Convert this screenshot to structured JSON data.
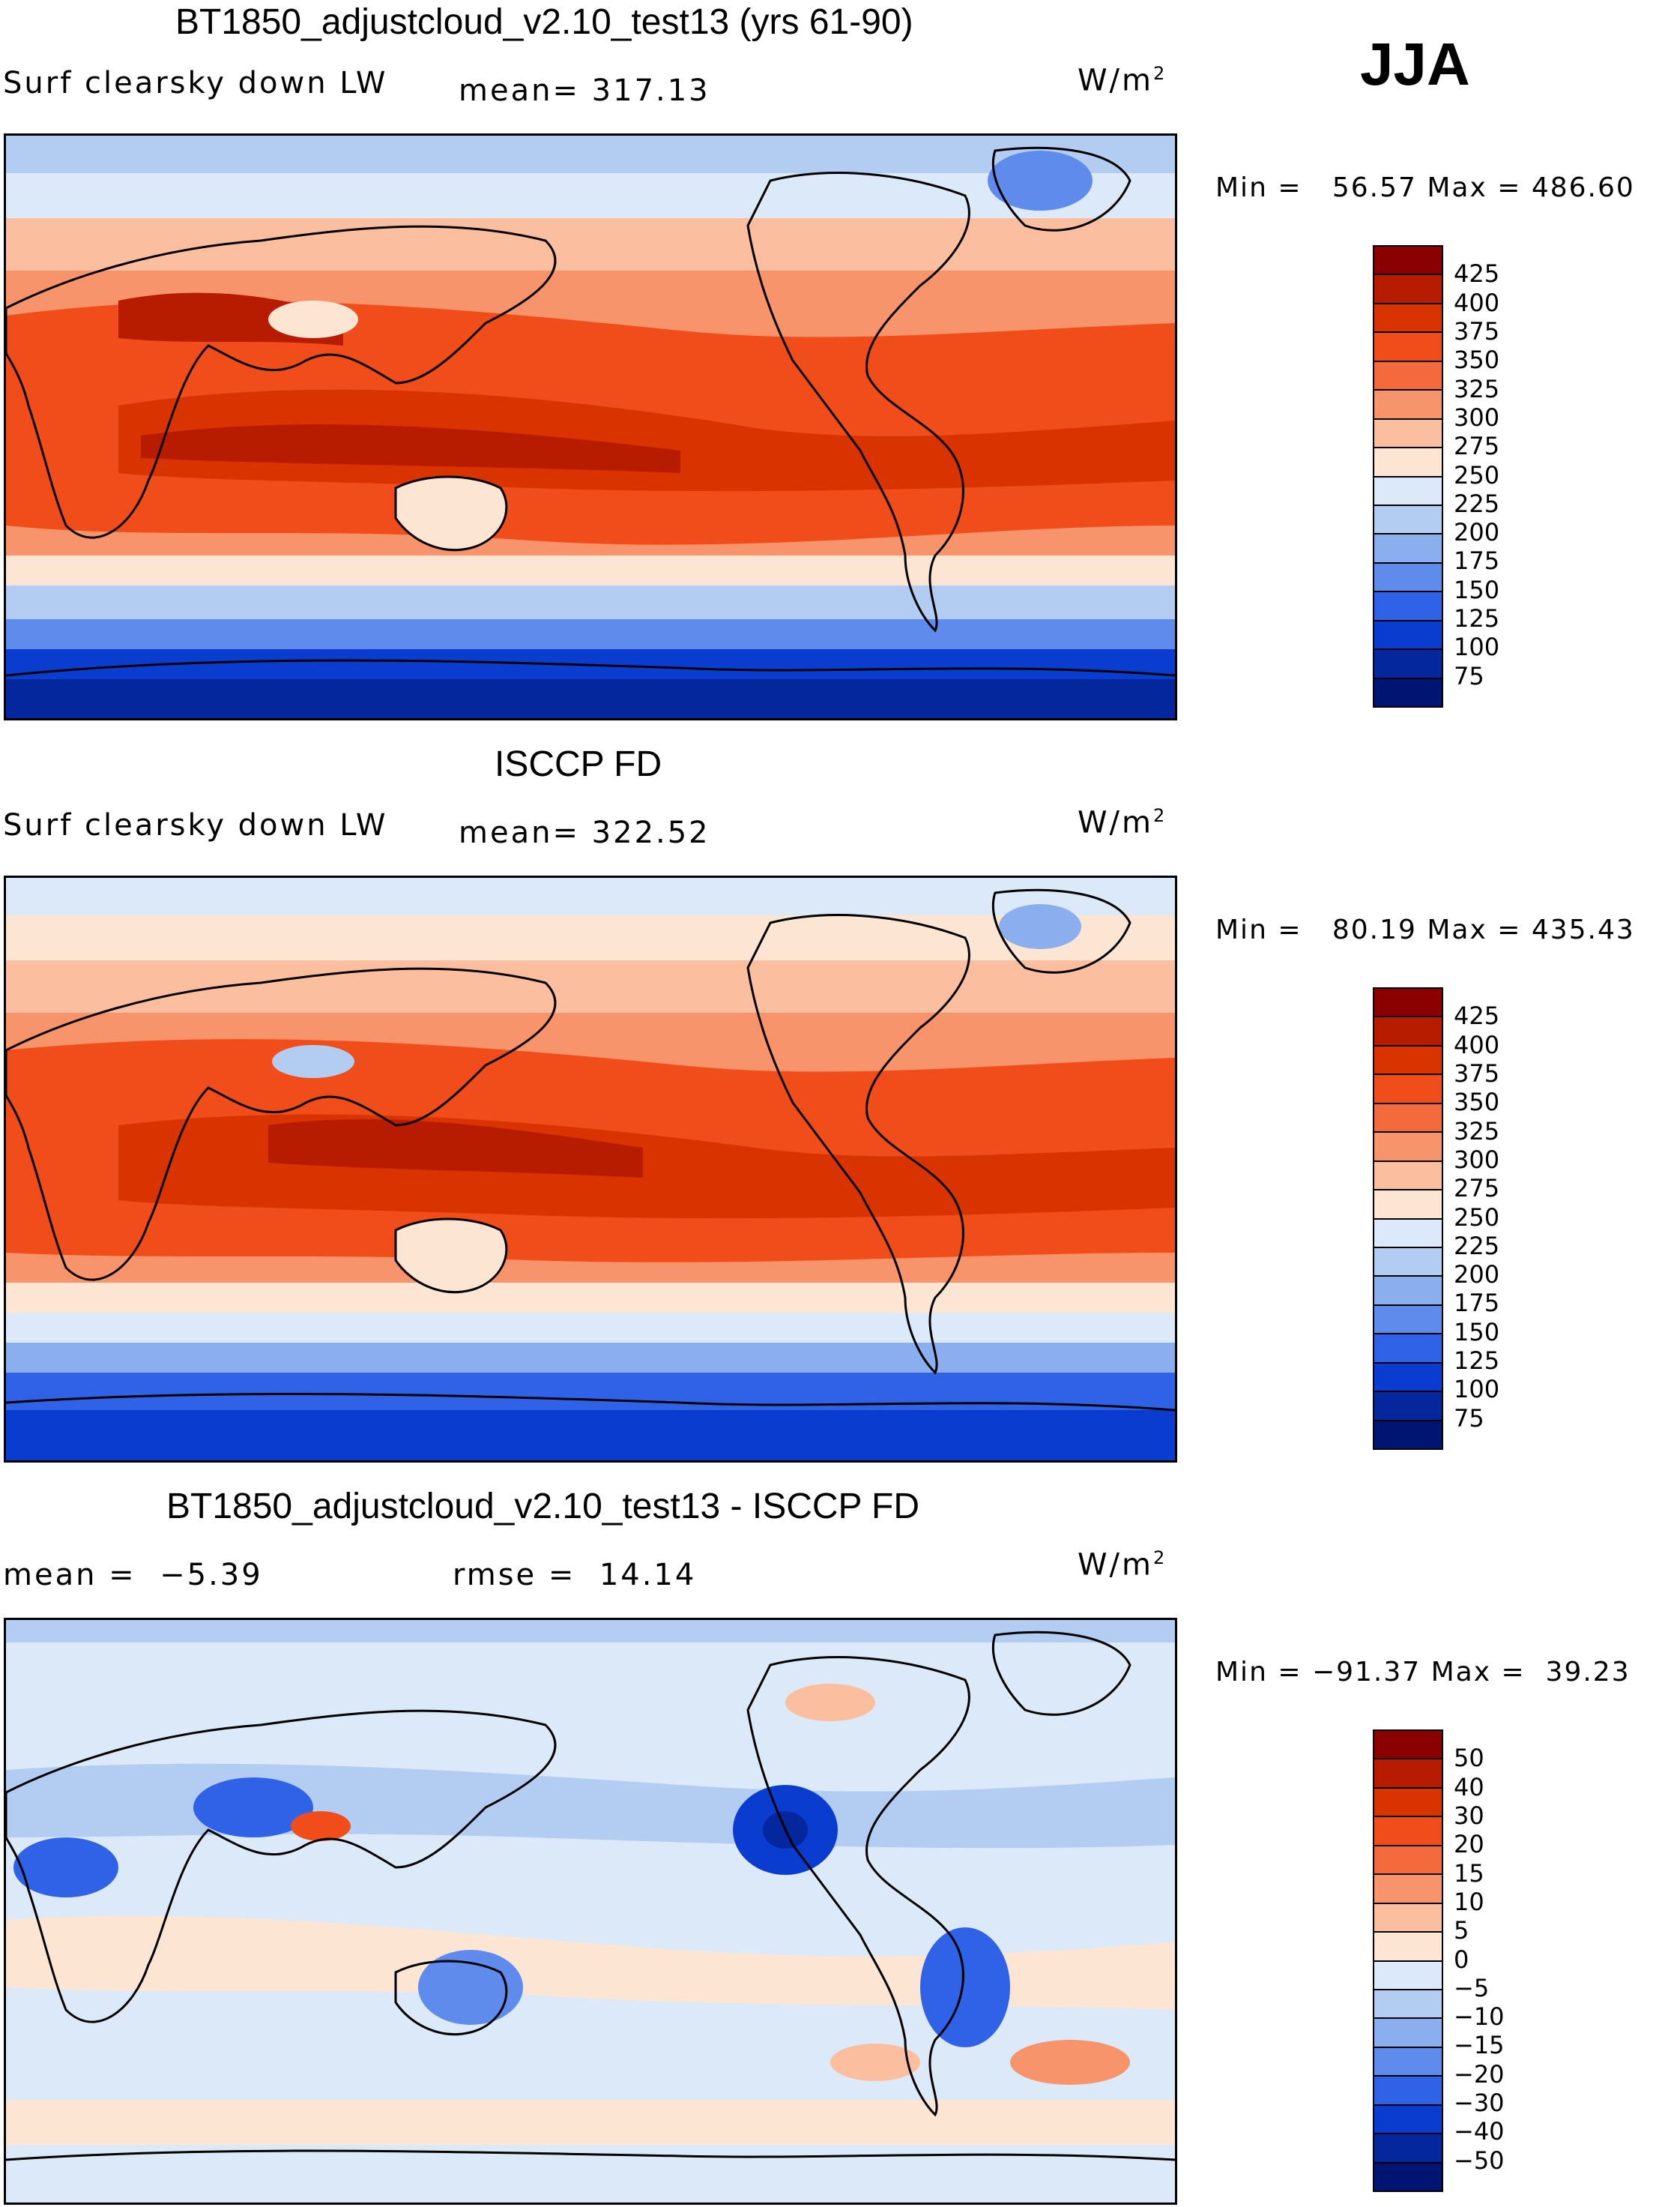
{
  "season": "JJA",
  "panels": [
    {
      "title": "BT1850_adjustcloud_v2.10_test13 (yrs 61-90)",
      "left_label": "Surf clearsky down LW",
      "center_label": "mean= 317.13",
      "units": "W/m",
      "units_exp": "2",
      "min": "56.57",
      "max": "486.60",
      "colorbar_labels": [
        "425",
        "400",
        "375",
        "350",
        "325",
        "300",
        "275",
        "250",
        "225",
        "200",
        "175",
        "150",
        "125",
        "100",
        "75"
      ],
      "colorbar_colors": [
        "#8b0000",
        "#b71c00",
        "#d93300",
        "#f04d1a",
        "#f46a3c",
        "#f8946b",
        "#fbbf9f",
        "#fde5d4",
        "#dbe9f8",
        "#b3cdf2",
        "#8aaeee",
        "#5e8bec",
        "#2f62e6",
        "#0b3cd0",
        "#05279e",
        "#001472"
      ]
    },
    {
      "title": "ISCCP FD",
      "left_label": "Surf clearsky down LW",
      "center_label": "mean= 322.52",
      "units": "W/m",
      "units_exp": "2",
      "min": "80.19",
      "max": "435.43",
      "colorbar_labels": [
        "425",
        "400",
        "375",
        "350",
        "325",
        "300",
        "275",
        "250",
        "225",
        "200",
        "175",
        "150",
        "125",
        "100",
        "75"
      ],
      "colorbar_colors": [
        "#8b0000",
        "#b71c00",
        "#d93300",
        "#f04d1a",
        "#f46a3c",
        "#f8946b",
        "#fbbf9f",
        "#fde5d4",
        "#dbe9f8",
        "#b3cdf2",
        "#8aaeee",
        "#5e8bec",
        "#2f62e6",
        "#0b3cd0",
        "#05279e",
        "#001472"
      ]
    },
    {
      "title": "BT1850_adjustcloud_v2.10_test13 - ISCCP FD",
      "left_label": "mean =  −5.39",
      "center_label": "rmse =  14.14",
      "units": "W/m",
      "units_exp": "2",
      "min": "−91.37",
      "max": " 39.23",
      "colorbar_labels": [
        "50",
        "40",
        "30",
        "20",
        "15",
        "10",
        "5",
        "0",
        "−5",
        "−10",
        "−15",
        "−20",
        "−30",
        "−40",
        "−50"
      ],
      "colorbar_colors": [
        "#8b0000",
        "#b71c00",
        "#d93300",
        "#f04d1a",
        "#f46a3c",
        "#f8946b",
        "#fbbf9f",
        "#fde5d4",
        "#dbe9f8",
        "#b3cdf2",
        "#8aaeee",
        "#5e8bec",
        "#2f62e6",
        "#0b3cd0",
        "#05279e",
        "#001472"
      ]
    }
  ],
  "map_colors": {
    "deep_red": "#b71c00",
    "red": "#d93300",
    "orange_red": "#f04d1a",
    "salmon": "#f8946b",
    "peach": "#fbbf9f",
    "cream": "#fde5d4",
    "pale_blue": "#dbe9f8",
    "light_blue": "#b3cdf2",
    "mid_blue": "#5e8bec",
    "blue": "#2f62e6",
    "dark_blue": "#0b3cd0",
    "navy": "#05279e"
  }
}
